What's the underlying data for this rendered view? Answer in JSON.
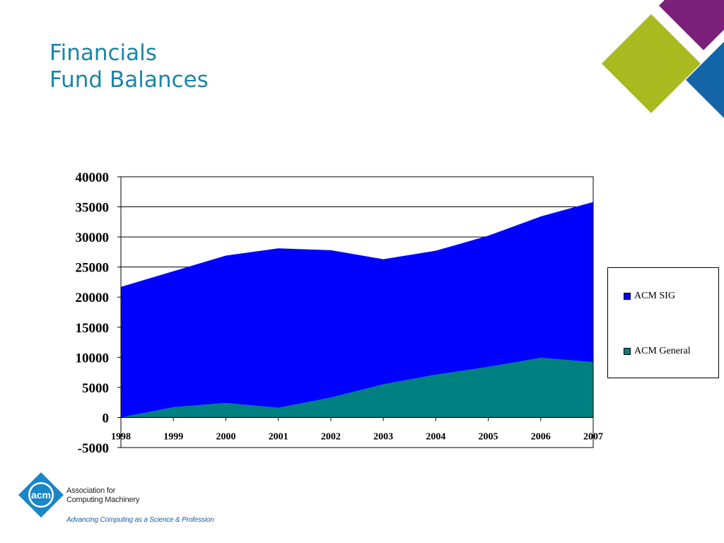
{
  "slide": {
    "title_line1": "Financials",
    "title_line2": "Fund Balances"
  },
  "decoration": {
    "colors": {
      "purple": "#7a1f7a",
      "lime": "#a9b920",
      "blue": "#1464a8"
    }
  },
  "logo": {
    "mark_text": "acm",
    "name_line1": "Association for",
    "name_line2": "Computing Machinery",
    "tagline": "Advancing Computing as a Science & Profession",
    "color": "#1a86c8"
  },
  "chart_data": {
    "type": "area",
    "stacked": true,
    "title": "",
    "xlabel": "",
    "ylabel": "",
    "categories": [
      "1998",
      "1999",
      "2000",
      "2001",
      "2002",
      "2003",
      "2004",
      "2005",
      "2006",
      "2007"
    ],
    "ylim": [
      -5000,
      40000
    ],
    "yticks": [
      40000,
      35000,
      30000,
      25000,
      20000,
      15000,
      10000,
      5000,
      0,
      -5000
    ],
    "grid": "horizontal",
    "legend_position": "right",
    "series": [
      {
        "name": "ACM General",
        "color": "#008080",
        "values": [
          0,
          1700,
          2400,
          1600,
          3300,
          5500,
          7100,
          8400,
          9900,
          9200
        ]
      },
      {
        "name": "ACM SIG",
        "color": "#0000ff",
        "values": [
          21700,
          22600,
          24500,
          26500,
          24500,
          20800,
          20600,
          21800,
          23500,
          26600
        ]
      }
    ]
  }
}
